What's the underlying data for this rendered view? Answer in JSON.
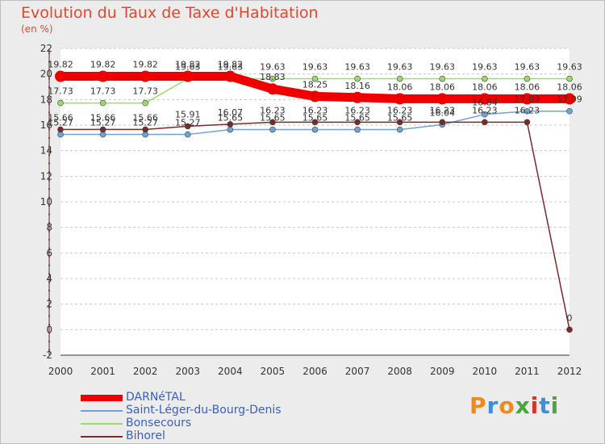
{
  "title": "Evolution du Taux de Taxe d'Habitation",
  "subtitle": "(en %)",
  "brand": {
    "text": "Proxiti",
    "letters": [
      "P",
      "r",
      "o",
      "x",
      "i",
      "t",
      "i"
    ],
    "colors": [
      "#f08a1c",
      "#3b8fd8",
      "#f08a1c",
      "#4aa541",
      "#d8342c",
      "#3b8fd8",
      "#4aa541"
    ]
  },
  "chart_data": {
    "type": "line",
    "title": "Evolution du Taux de Taxe d'Habitation",
    "ylabel": "(en %)",
    "xlabel": "",
    "x": [
      "2000",
      "2001",
      "2002",
      "2003",
      "2004",
      "2005",
      "2006",
      "2007",
      "2008",
      "2009",
      "2010",
      "2011",
      "2012"
    ],
    "ylim": [
      -2,
      22
    ],
    "yticks": [
      "-2",
      "0",
      "2",
      "4",
      "6",
      "8",
      "10",
      "12",
      "14",
      "16",
      "18",
      "20",
      "22"
    ],
    "grid": "horizontal dashed",
    "legend_position": "bottom-left",
    "series": [
      {
        "name": "DARNéTAL",
        "color": "#ee0000",
        "values": [
          19.82,
          19.82,
          19.82,
          19.82,
          19.82,
          18.83,
          18.25,
          18.16,
          18.06,
          18.06,
          18.06,
          18.06,
          18.06
        ],
        "labels": [
          "19.82",
          "19.82",
          "19.82",
          "19.82",
          "19.82",
          "18.83",
          "18.25",
          "18.16",
          "18.06",
          "18.06",
          "18.06",
          "18.06",
          "18.06"
        ]
      },
      {
        "name": "Saint-Léger-du-Bourg-Denis",
        "color": "#6fa3d6",
        "values": [
          15.27,
          15.27,
          15.27,
          15.27,
          15.65,
          15.65,
          15.65,
          15.65,
          15.65,
          16.04,
          16.84,
          17.09,
          17.09
        ],
        "labels": [
          "15.27",
          "15.27",
          "15.27",
          "15.27",
          "15.65",
          "15.65",
          "15.65",
          "15.65",
          "15.65",
          "16.04",
          "16.84",
          "17.09",
          "17.09"
        ]
      },
      {
        "name": "Bonsecours",
        "color": "#99dd66",
        "values": [
          17.73,
          17.73,
          17.73,
          19.63,
          19.63,
          19.63,
          19.63,
          19.63,
          19.63,
          19.63,
          19.63,
          19.63,
          19.63
        ],
        "labels": [
          "17.73",
          "17.73",
          "17.73",
          "19.63",
          "19.63",
          "19.63",
          "19.63",
          "19.63",
          "19.63",
          "19.63",
          "19.63",
          "19.63",
          "19.63"
        ]
      },
      {
        "name": "Bihorel",
        "color": "#7a2a2a",
        "values": [
          15.66,
          15.66,
          15.66,
          15.91,
          16.07,
          16.23,
          16.23,
          16.23,
          16.23,
          16.23,
          16.23,
          16.23,
          0
        ],
        "labels": [
          "15.66",
          "15.66",
          "15.66",
          "15.91",
          "16.07",
          "16.23",
          "16.23",
          "16.23",
          "16.23",
          "16.23",
          "16.23",
          "16.23",
          "0"
        ]
      }
    ]
  }
}
